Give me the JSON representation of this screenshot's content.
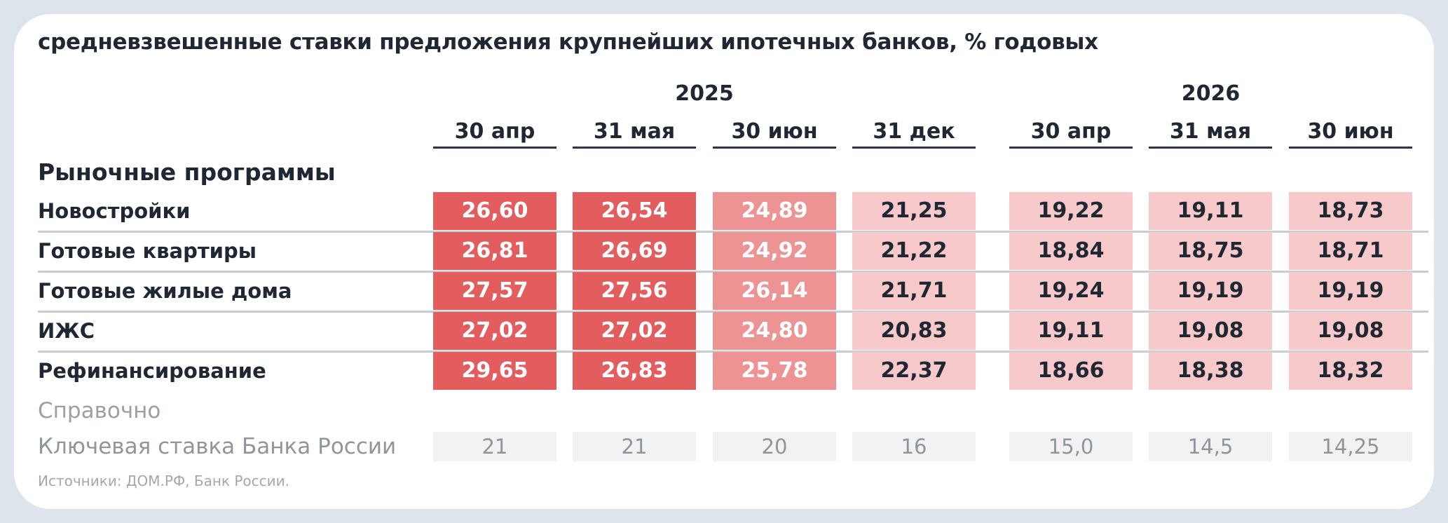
{
  "chart_data": {
    "type": "table",
    "title": "средневзвешенные ставки предложения крупнейших ипотечных банков, % годовых",
    "years": [
      {
        "label": "2025",
        "span": [
          0,
          3
        ]
      },
      {
        "label": "2026",
        "span": [
          4,
          6
        ]
      }
    ],
    "columns": [
      "30 апр",
      "31 мая",
      "30 июн",
      "31 дек",
      "30 апр",
      "31 мая",
      "30 июн"
    ],
    "section": "Рыночные программы",
    "rows": [
      {
        "label": "Новостройки",
        "values": [
          "26,60",
          "26,54",
          "24,89",
          "21,25",
          "19,22",
          "19,11",
          "18,73"
        ]
      },
      {
        "label": "Готовые квартиры",
        "values": [
          "26,81",
          "26,69",
          "24,92",
          "21,22",
          "18,84",
          "18,75",
          "18,71"
        ]
      },
      {
        "label": "Готовые жилые дома",
        "values": [
          "27,57",
          "27,56",
          "26,14",
          "21,71",
          "19,24",
          "19,19",
          "19,19"
        ]
      },
      {
        "label": "ИЖС",
        "values": [
          "27,02",
          "27,02",
          "24,80",
          "20,83",
          "19,11",
          "19,08",
          "19,08"
        ]
      },
      {
        "label": "Рефинансирование",
        "values": [
          "29,65",
          "26,83",
          "25,78",
          "22,37",
          "18,66",
          "18,38",
          "18,32"
        ]
      }
    ],
    "reference": {
      "section": "Справочно",
      "label": "Ключевая ставка Банка России",
      "values": [
        "21",
        "21",
        "20",
        "16",
        "15,0",
        "14,5",
        "14,25"
      ]
    },
    "source": "Источники: ДОМ.РФ, Банк России.",
    "heat_colors": {
      "high": "#e35d5f",
      "mid": "#ee9393",
      "low": "#f7c9ca"
    }
  }
}
